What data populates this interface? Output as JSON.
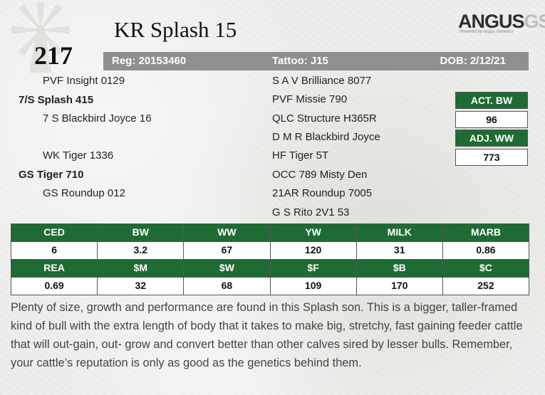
{
  "lot_number": "217",
  "animal_name": "KR Splash 15",
  "logo": {
    "main": "ANGUS",
    "accent": "GS",
    "tagline": "Powered by Angus Genetics"
  },
  "registration": {
    "reg": "Reg: 20153460",
    "tattoo": "Tattoo: J15",
    "dob": "DOB: 2/12/21"
  },
  "pedigree": {
    "sire_sire": "PVF Insight 0129",
    "sire": "7/S Splash 415",
    "sire_dam": "7 S Blackbird Joyce 16",
    "dam_sire": "WK Tiger 1336",
    "dam": "GS Tiger 710",
    "dam_dam": "GS Roundup 012",
    "right": [
      "S A V Brilliance 8077",
      "PVF Missie 790",
      "QLC Structure H365R",
      "D M R Blackbird Joyce",
      "HF Tiger 5T",
      "OCC 789 Misty Den",
      "21AR Roundup 7005",
      "G S Rito 2V1 53"
    ]
  },
  "actuals": {
    "bw_label": "ACT. BW",
    "bw_value": "96",
    "ww_label": "ADJ. WW",
    "ww_value": "773"
  },
  "epds": {
    "row1_headers": [
      "CED",
      "BW",
      "WW",
      "YW",
      "MILK",
      "MARB"
    ],
    "row1_values": [
      "6",
      "3.2",
      "67",
      "120",
      "31",
      "0.86"
    ],
    "row2_headers": [
      "REA",
      "$M",
      "$W",
      "$F",
      "$B",
      "$C"
    ],
    "row2_values": [
      "0.69",
      "32",
      "68",
      "109",
      "170",
      "252"
    ]
  },
  "description": "Plenty of size, growth and performance are found in this Splash son. This is a bigger, taller-framed kind of bull with the extra length of body that it takes to make big, stretchy, fast gaining feeder cattle that will out-gain, out- grow and convert better than other calves sired by lesser bulls. Remember, your cattle’s reputation is only as good as the genetics behind them.",
  "colors": {
    "header_green": "#1f6b34",
    "reg_bar_gray": "#8f8f8f",
    "background": "#eeeeec"
  }
}
